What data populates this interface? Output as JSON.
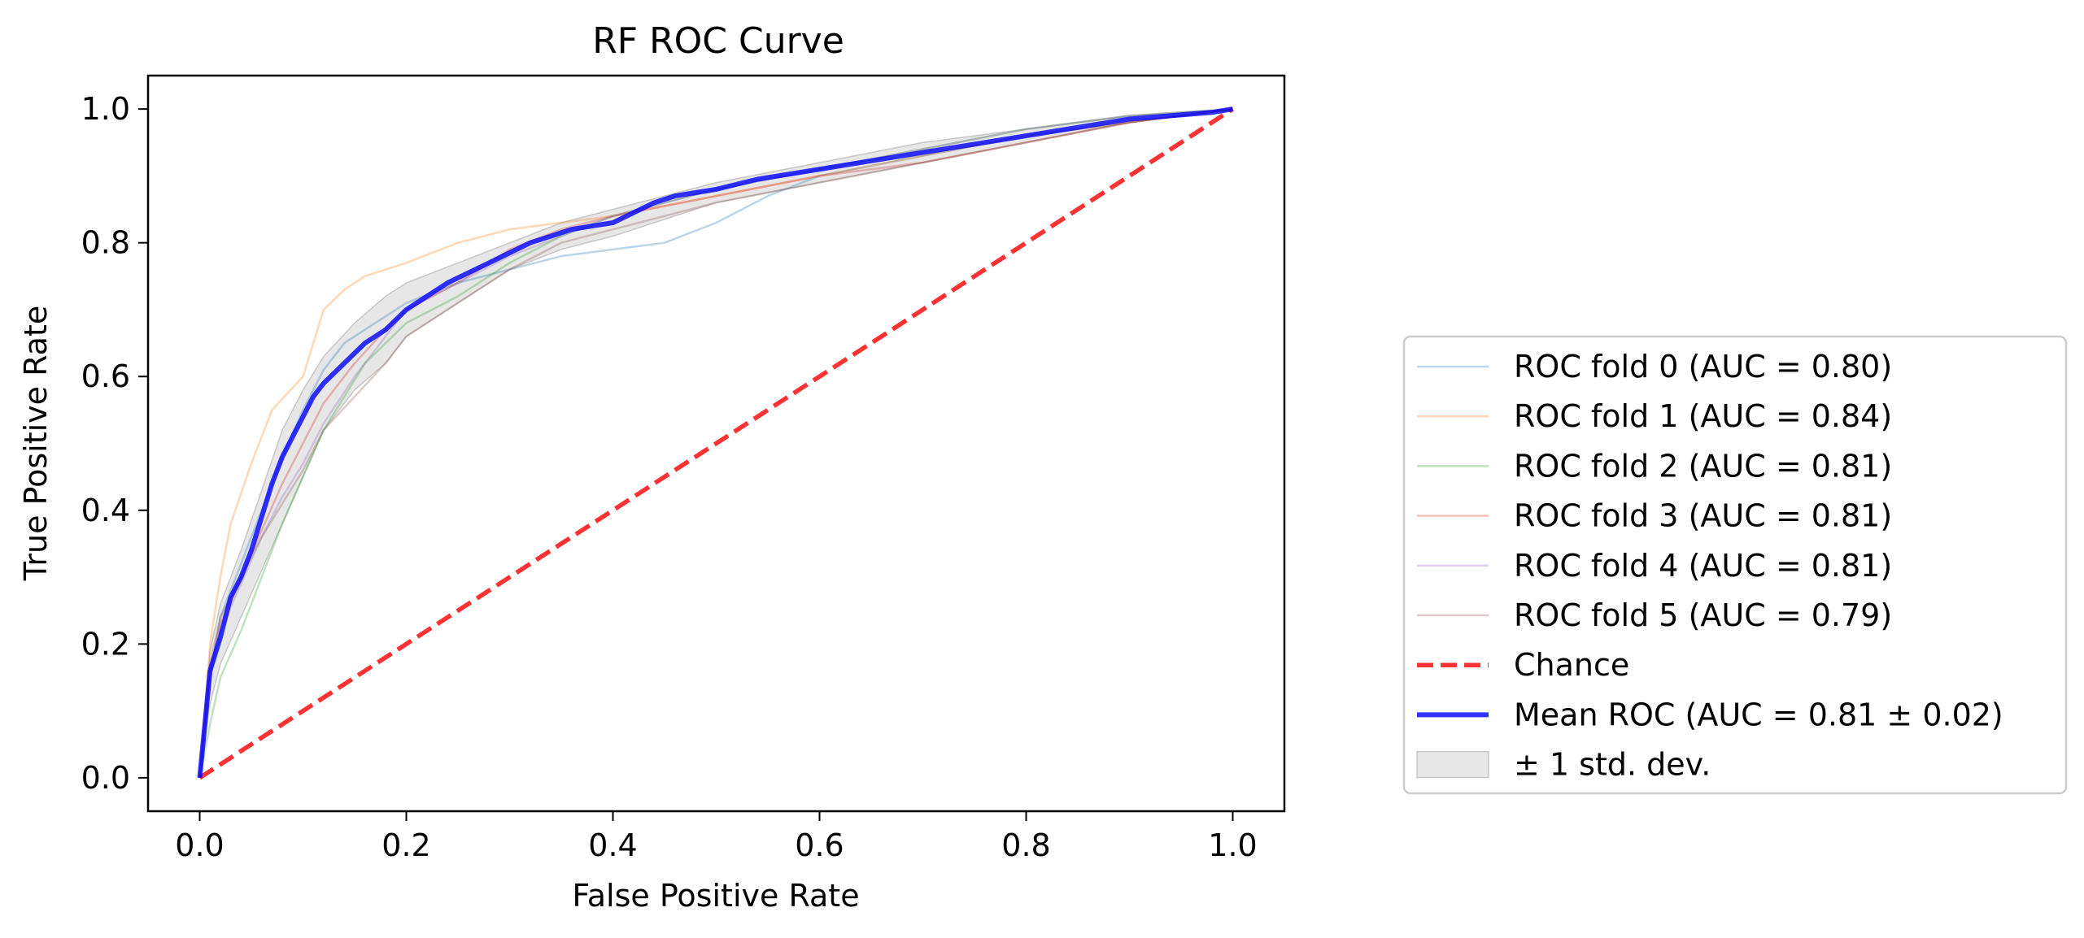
{
  "chart_data": {
    "type": "line",
    "title": "RF ROC Curve",
    "xlabel": "False Positive Rate",
    "ylabel": "True Positive Rate",
    "xlim": [
      -0.05,
      1.05
    ],
    "ylim": [
      -0.05,
      1.05
    ],
    "xticks": [
      "0.0",
      "0.2",
      "0.4",
      "0.6",
      "0.8",
      "1.0"
    ],
    "yticks": [
      "0.0",
      "0.2",
      "0.4",
      "0.6",
      "0.8",
      "1.0"
    ],
    "grid": false,
    "legend_position": "outside right",
    "series": [
      {
        "name": "ROC fold 0 (AUC = 0.80)",
        "color": "#1f77b4",
        "x": [
          0,
          0.01,
          0.02,
          0.04,
          0.06,
          0.08,
          0.1,
          0.12,
          0.14,
          0.16,
          0.18,
          0.2,
          0.25,
          0.3,
          0.35,
          0.4,
          0.45,
          0.5,
          0.55,
          0.6,
          0.7,
          0.8,
          0.9,
          1.0
        ],
        "y": [
          0,
          0.15,
          0.24,
          0.32,
          0.4,
          0.48,
          0.55,
          0.61,
          0.65,
          0.67,
          0.69,
          0.71,
          0.74,
          0.76,
          0.78,
          0.79,
          0.8,
          0.83,
          0.87,
          0.9,
          0.93,
          0.96,
          0.98,
          1.0
        ]
      },
      {
        "name": "ROC fold 1 (AUC = 0.84)",
        "color": "#ff7f0e",
        "x": [
          0,
          0.01,
          0.02,
          0.03,
          0.05,
          0.07,
          0.1,
          0.11,
          0.12,
          0.14,
          0.16,
          0.2,
          0.25,
          0.3,
          0.35,
          0.4,
          0.5,
          0.6,
          0.7,
          0.8,
          0.9,
          1.0
        ],
        "y": [
          0,
          0.2,
          0.3,
          0.38,
          0.47,
          0.55,
          0.6,
          0.65,
          0.7,
          0.73,
          0.75,
          0.77,
          0.8,
          0.82,
          0.83,
          0.84,
          0.87,
          0.9,
          0.93,
          0.96,
          0.98,
          1.0
        ]
      },
      {
        "name": "ROC fold 2 (AUC = 0.81)",
        "color": "#2ca02c",
        "x": [
          0,
          0.01,
          0.02,
          0.04,
          0.06,
          0.08,
          0.1,
          0.12,
          0.14,
          0.16,
          0.2,
          0.25,
          0.3,
          0.35,
          0.4,
          0.45,
          0.5,
          0.6,
          0.7,
          0.8,
          0.9,
          1.0
        ],
        "y": [
          0,
          0.08,
          0.15,
          0.22,
          0.3,
          0.38,
          0.45,
          0.52,
          0.57,
          0.62,
          0.68,
          0.72,
          0.77,
          0.81,
          0.84,
          0.86,
          0.88,
          0.91,
          0.94,
          0.97,
          0.99,
          1.0
        ]
      },
      {
        "name": "ROC fold 3 (AUC = 0.81)",
        "color": "#d62728",
        "x": [
          0,
          0.01,
          0.02,
          0.04,
          0.06,
          0.08,
          0.1,
          0.12,
          0.15,
          0.18,
          0.2,
          0.25,
          0.3,
          0.35,
          0.4,
          0.5,
          0.6,
          0.7,
          0.8,
          0.9,
          1.0
        ],
        "y": [
          0,
          0.16,
          0.23,
          0.3,
          0.37,
          0.44,
          0.5,
          0.56,
          0.62,
          0.67,
          0.7,
          0.74,
          0.79,
          0.82,
          0.84,
          0.87,
          0.9,
          0.92,
          0.95,
          0.98,
          1.0
        ]
      },
      {
        "name": "ROC fold 4 (AUC = 0.81)",
        "color": "#9467bd",
        "x": [
          0,
          0.01,
          0.02,
          0.04,
          0.06,
          0.08,
          0.1,
          0.12,
          0.15,
          0.18,
          0.2,
          0.25,
          0.3,
          0.35,
          0.4,
          0.5,
          0.6,
          0.7,
          0.8,
          0.9,
          1.0
        ],
        "y": [
          0,
          0.15,
          0.22,
          0.29,
          0.36,
          0.42,
          0.47,
          0.53,
          0.6,
          0.66,
          0.7,
          0.74,
          0.78,
          0.81,
          0.84,
          0.88,
          0.91,
          0.94,
          0.97,
          0.99,
          1.0
        ]
      },
      {
        "name": "ROC fold 5 (AUC = 0.79)",
        "color": "#8c564b",
        "x": [
          0,
          0.01,
          0.02,
          0.04,
          0.06,
          0.08,
          0.1,
          0.12,
          0.15,
          0.18,
          0.2,
          0.25,
          0.3,
          0.35,
          0.4,
          0.5,
          0.6,
          0.7,
          0.8,
          0.9,
          1.0
        ],
        "y": [
          0,
          0.17,
          0.24,
          0.3,
          0.36,
          0.41,
          0.46,
          0.52,
          0.57,
          0.62,
          0.66,
          0.71,
          0.76,
          0.8,
          0.82,
          0.86,
          0.89,
          0.92,
          0.95,
          0.98,
          1.0
        ]
      }
    ],
    "chance": {
      "name": "Chance",
      "color": "#ff0000",
      "x": [
        0,
        1
      ],
      "y": [
        0,
        1
      ]
    },
    "mean": {
      "name": "Mean ROC (AUC = 0.81 ± 0.02)",
      "color": "#0000ff",
      "x": [
        0,
        0.01,
        0.02,
        0.03,
        0.04,
        0.05,
        0.06,
        0.07,
        0.08,
        0.09,
        0.1,
        0.11,
        0.12,
        0.14,
        0.16,
        0.18,
        0.2,
        0.22,
        0.24,
        0.26,
        0.28,
        0.3,
        0.32,
        0.34,
        0.36,
        0.38,
        0.4,
        0.42,
        0.44,
        0.46,
        0.48,
        0.5,
        0.54,
        0.58,
        0.62,
        0.66,
        0.7,
        0.74,
        0.78,
        0.82,
        0.86,
        0.9,
        0.94,
        0.98,
        1.0
      ],
      "y": [
        0,
        0.16,
        0.21,
        0.27,
        0.3,
        0.34,
        0.39,
        0.44,
        0.48,
        0.51,
        0.54,
        0.57,
        0.59,
        0.62,
        0.65,
        0.67,
        0.7,
        0.72,
        0.74,
        0.755,
        0.77,
        0.785,
        0.8,
        0.81,
        0.82,
        0.825,
        0.83,
        0.845,
        0.86,
        0.87,
        0.875,
        0.88,
        0.895,
        0.905,
        0.915,
        0.925,
        0.935,
        0.945,
        0.955,
        0.965,
        0.975,
        0.985,
        0.99,
        0.995,
        1.0
      ]
    },
    "std_band": {
      "name": "± 1 std. dev.",
      "color": "#bbbbbb",
      "x": [
        0,
        0.01,
        0.02,
        0.04,
        0.06,
        0.08,
        0.1,
        0.12,
        0.15,
        0.18,
        0.2,
        0.25,
        0.3,
        0.35,
        0.4,
        0.5,
        0.6,
        0.7,
        0.8,
        0.9,
        1.0
      ],
      "upper": [
        0,
        0.19,
        0.26,
        0.34,
        0.43,
        0.52,
        0.58,
        0.63,
        0.68,
        0.72,
        0.74,
        0.77,
        0.8,
        0.83,
        0.85,
        0.89,
        0.92,
        0.95,
        0.97,
        0.99,
        1.0
      ],
      "lower": [
        0,
        0.11,
        0.17,
        0.24,
        0.31,
        0.38,
        0.45,
        0.52,
        0.58,
        0.62,
        0.66,
        0.71,
        0.76,
        0.79,
        0.81,
        0.86,
        0.89,
        0.92,
        0.95,
        0.98,
        1.0
      ]
    }
  }
}
